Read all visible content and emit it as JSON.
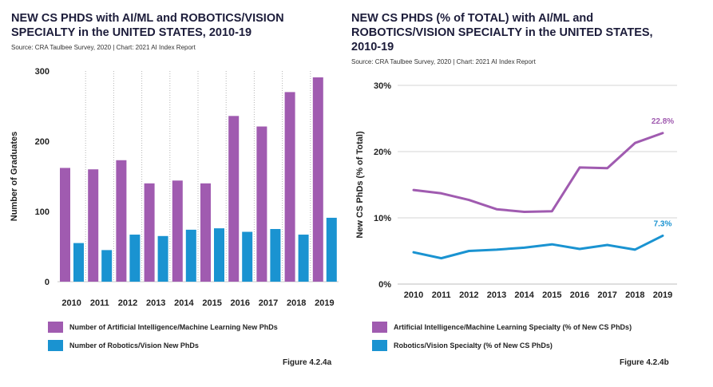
{
  "charts": [
    {
      "title": "NEW CS PHDS with AI/ML and ROBOTICS/VISION SPECIALTY in the UNITED STATES, 2010-19",
      "source": "Source: CRA Taulbee Survey, 2020 | Chart: 2021 AI Index Report",
      "figure_label": "Figure 4.2.4a",
      "legend": [
        {
          "label": "Number of Artificial Intelligence/Machine Learning New PhDs",
          "color": "#a05bb0"
        },
        {
          "label": "Number of Robotics/Vision New PhDs",
          "color": "#1a93d1"
        }
      ]
    },
    {
      "title": "NEW CS PHDS (% of TOTAL) with AI/ML and ROBOTICS/VISION SPECIALTY in the UNITED STATES, 2010-19",
      "source": "Source: CRA Taulbee Survey, 2020 | Chart: 2021 AI Index Report",
      "figure_label": "Figure 4.2.4b",
      "legend": [
        {
          "label": "Artificial Intelligence/Machine Learning Specialty (% of New CS PhDs)",
          "color": "#a05bb0"
        },
        {
          "label": "Robotics/Vision Specialty (% of New CS PhDs)",
          "color": "#1a93d1"
        }
      ]
    }
  ],
  "chart_data": [
    {
      "type": "bar",
      "title": "NEW CS PHDS with AI/ML and ROBOTICS/VISION SPECIALTY in the UNITED STATES, 2010-19",
      "categories": [
        "2010",
        "2011",
        "2012",
        "2013",
        "2014",
        "2015",
        "2016",
        "2017",
        "2018",
        "2019"
      ],
      "series": [
        {
          "name": "Number of Artificial Intelligence/Machine Learning New PhDs",
          "color": "#a05bb0",
          "values": [
            162,
            160,
            173,
            140,
            144,
            140,
            236,
            221,
            270,
            291
          ]
        },
        {
          "name": "Number of Robotics/Vision New PhDs",
          "color": "#1a93d1",
          "values": [
            55,
            45,
            67,
            65,
            74,
            76,
            71,
            75,
            67,
            91
          ]
        }
      ],
      "xlabel": "",
      "ylabel": "Number of Graduates",
      "ylim": [
        0,
        300
      ],
      "yticks": [
        0,
        100,
        200,
        300
      ],
      "ytick_labels": [
        "0",
        "100",
        "200",
        "300"
      ],
      "grid": "vertical-dotted"
    },
    {
      "type": "line",
      "title": "NEW CS PHDS (% of TOTAL) with AI/ML and ROBOTICS/VISION SPECIALTY in the UNITED STATES, 2010-19",
      "x": [
        "2010",
        "2011",
        "2012",
        "2013",
        "2014",
        "2015",
        "2016",
        "2017",
        "2018",
        "2019"
      ],
      "series": [
        {
          "name": "Artificial Intelligence/Machine Learning Specialty (% of New CS PhDs)",
          "color": "#a05bb0",
          "values": [
            14.2,
            13.7,
            12.7,
            11.3,
            10.9,
            11.0,
            17.6,
            17.5,
            21.3,
            22.8
          ],
          "end_label": "22.8%"
        },
        {
          "name": "Robotics/Vision Specialty (% of New CS PhDs)",
          "color": "#1a93d1",
          "values": [
            4.8,
            3.9,
            5.0,
            5.2,
            5.5,
            6.0,
            5.3,
            5.9,
            5.2,
            7.3
          ],
          "end_label": "7.3%"
        }
      ],
      "xlabel": "",
      "ylabel": "New CS PhDs (% of Total)",
      "ylim": [
        0,
        30
      ],
      "yticks": [
        0,
        10,
        20,
        30
      ],
      "ytick_labels": [
        "0%",
        "10%",
        "20%",
        "30%"
      ],
      "grid": "horizontal"
    }
  ]
}
